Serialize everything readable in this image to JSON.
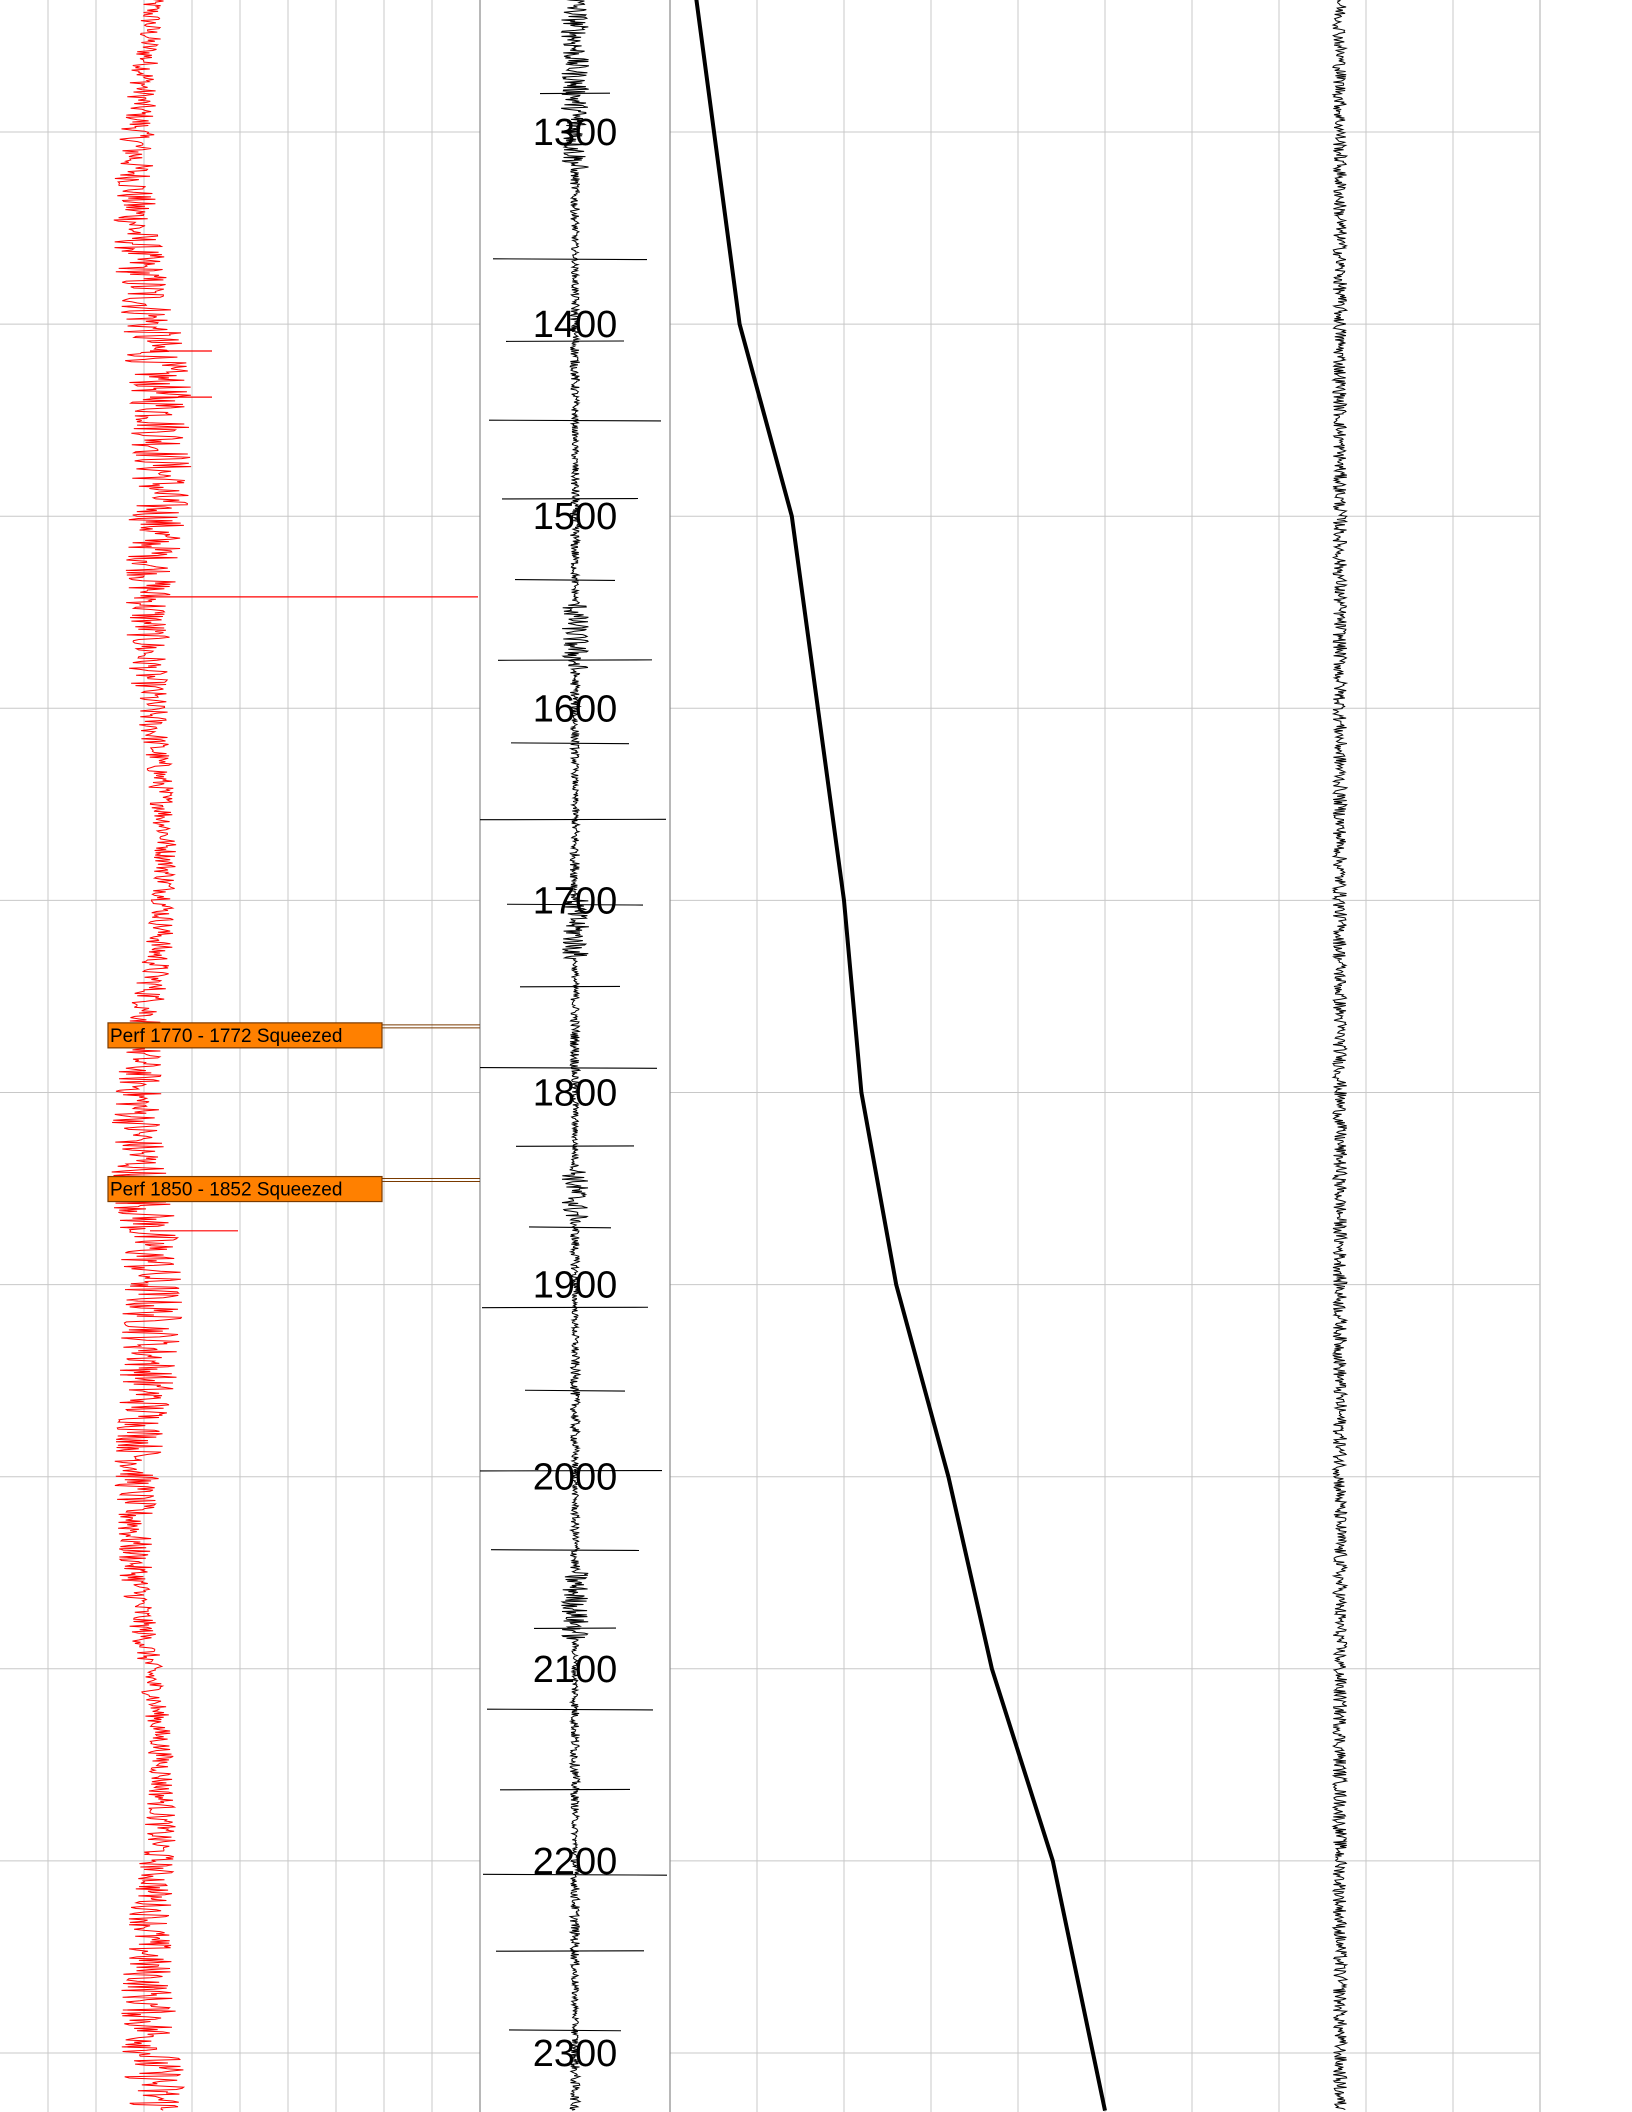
{
  "chart_data": {
    "type": "line",
    "title": "",
    "ylabel": "",
    "depth_range": [
      1230,
      2330
    ],
    "depth_ticks": [
      1300,
      1400,
      1500,
      1600,
      1700,
      1800,
      1900,
      2000,
      2100,
      2200,
      2300
    ],
    "depth_tick_labels": [
      "1300",
      "1400",
      "1500",
      "1600",
      "1700",
      "1800",
      "1900",
      "2000",
      "2100",
      "2200",
      "2300"
    ],
    "grid": true,
    "series": [
      {
        "track": "left",
        "color": "#ff0000",
        "style": "noisy-curve",
        "spike_depths": [
          1414,
          1438,
          1542,
          1872
        ]
      },
      {
        "track": "depth",
        "color": "#000000",
        "style": "noisy-curve",
        "marker_depths": [
          1280,
          1366,
          1409,
          1450,
          1491,
          1533,
          1575,
          1618,
          1658,
          1702,
          1745,
          1787,
          1828,
          1870,
          1912,
          1955,
          1997,
          2038,
          2079,
          2121,
          2163,
          2207,
          2247,
          2288
        ]
      },
      {
        "track": "right",
        "color": "#000000",
        "style": "trend-line",
        "x": [
          0.03,
          0.08,
          0.14,
          0.17,
          0.2,
          0.22,
          0.26,
          0.32,
          0.37,
          0.44,
          0.5
        ],
        "depth": [
          1230,
          1400,
          1500,
          1600,
          1700,
          1800,
          1900,
          2000,
          2100,
          2200,
          2330
        ]
      },
      {
        "track": "right",
        "color": "#000000",
        "style": "noisy-curve",
        "baseline": 0.77
      }
    ],
    "annotations": [
      {
        "label": "Perf 1770 - 1772  Squeezed",
        "depth": 1770,
        "color": "#ff8000"
      },
      {
        "label": "Perf 1850 - 1852  Squeezed",
        "depth": 1850,
        "color": "#ff8000"
      }
    ]
  },
  "colors": {
    "grid": "#c8c8c8",
    "depth_track_border": "#888888",
    "perf_fill": "#ff8000",
    "perf_border": "#7a3a00"
  }
}
